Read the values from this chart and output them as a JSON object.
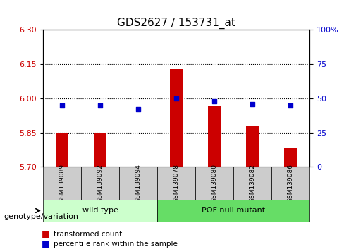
{
  "title": "GDS2627 / 153731_at",
  "samples": [
    "GSM139089",
    "GSM139092",
    "GSM139094",
    "GSM139078",
    "GSM139080",
    "GSM139082",
    "GSM139086"
  ],
  "transformed_count": [
    5.85,
    5.85,
    5.702,
    6.13,
    5.97,
    5.88,
    5.78
  ],
  "percentile_rank": [
    45,
    45,
    42,
    50,
    48,
    46,
    45
  ],
  "bar_baseline": 5.7,
  "ylim_left": [
    5.7,
    6.3
  ],
  "ylim_right": [
    0,
    100
  ],
  "yticks_left": [
    5.7,
    5.85,
    6.0,
    6.15,
    6.3
  ],
  "yticks_right": [
    0,
    25,
    50,
    75,
    100
  ],
  "yticklabels_right": [
    "0",
    "25",
    "50",
    "75",
    "100%"
  ],
  "hlines": [
    5.85,
    6.0,
    6.15
  ],
  "bar_color": "#cc0000",
  "dot_color": "#0000cc",
  "group_labels": [
    "wild type",
    "POF null mutant"
  ],
  "group_ranges": [
    [
      0,
      3
    ],
    [
      3,
      7
    ]
  ],
  "group_colors": [
    "#aaffaa",
    "#00cc00"
  ],
  "group_bg_colors": [
    "#ccffcc",
    "#66dd66"
  ],
  "sample_bg_color": "#cccccc",
  "xlabel": "genotype/variation",
  "legend_bar_label": "transformed count",
  "legend_dot_label": "percentile rank within the sample",
  "title_fontsize": 11,
  "tick_fontsize": 8,
  "label_fontsize": 8
}
